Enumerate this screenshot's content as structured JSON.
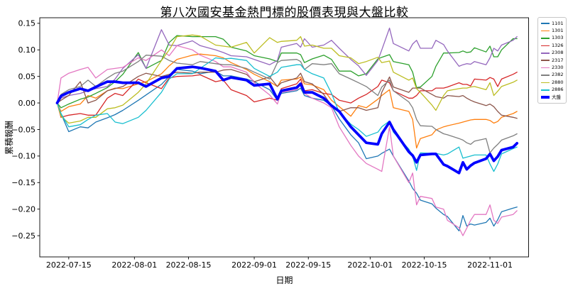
{
  "title": "第八次國安基金熱門標的股價表現與大盤比較",
  "chart_data": {
    "type": "line",
    "title": "第八次國安基金熱門標的股價表現與大盤比較",
    "xlabel": "日期",
    "ylabel": "累積報酬",
    "grid": false,
    "legend_position": "outside-right",
    "background": "#ffffff",
    "spine_color": "#000000",
    "ylim": [
      -0.29,
      0.1605
    ],
    "xlim_days": [
      -4.5,
      122
    ],
    "yticks": [
      {
        "v": 0.15,
        "label": "0.15"
      },
      {
        "v": 0.1,
        "label": "0.10"
      },
      {
        "v": 0.05,
        "label": "0.05"
      },
      {
        "v": 0.0,
        "label": "0.00"
      },
      {
        "v": -0.05,
        "label": "−0.05"
      },
      {
        "v": -0.1,
        "label": "−0.10"
      },
      {
        "v": -0.15,
        "label": "−0.15"
      },
      {
        "v": -0.2,
        "label": "−0.20"
      },
      {
        "v": -0.25,
        "label": "−0.25"
      }
    ],
    "xticks": [
      {
        "date": "2022-07-15",
        "label": "2022-07-15"
      },
      {
        "date": "2022-08-01",
        "label": "2022-08-01"
      },
      {
        "date": "2022-08-15",
        "label": "2022-08-15"
      },
      {
        "date": "2022-09-01",
        "label": "2022-09-01"
      },
      {
        "date": "2022-09-15",
        "label": "2022-09-15"
      },
      {
        "date": "2022-10-01",
        "label": "2022-10-01"
      },
      {
        "date": "2022-10-15",
        "label": "2022-10-15"
      },
      {
        "date": "2022-11-01",
        "label": "2022-11-01"
      }
    ],
    "x": [
      "2022-07-12",
      "2022-07-13",
      "2022-07-15",
      "2022-07-18",
      "2022-07-20",
      "2022-07-22",
      "2022-07-25",
      "2022-07-27",
      "2022-07-29",
      "2022-08-02",
      "2022-08-04",
      "2022-08-08",
      "2022-08-10",
      "2022-08-12",
      "2022-08-16",
      "2022-08-18",
      "2022-08-22",
      "2022-08-24",
      "2022-08-26",
      "2022-08-30",
      "2022-09-01",
      "2022-09-05",
      "2022-09-07",
      "2022-09-08",
      "2022-09-12",
      "2022-09-13",
      "2022-09-14",
      "2022-09-16",
      "2022-09-19",
      "2022-09-21",
      "2022-09-23",
      "2022-09-26",
      "2022-09-28",
      "2022-09-30",
      "2022-10-03",
      "2022-10-04",
      "2022-10-06",
      "2022-10-07",
      "2022-10-11",
      "2022-10-12",
      "2022-10-13",
      "2022-10-14",
      "2022-10-17",
      "2022-10-18",
      "2022-10-20",
      "2022-10-21",
      "2022-10-24",
      "2022-10-25",
      "2022-10-26",
      "2022-10-27",
      "2022-10-28",
      "2022-10-31",
      "2022-11-01",
      "2022-11-02",
      "2022-11-03",
      "2022-11-04",
      "2022-11-07",
      "2022-11-08"
    ],
    "series": [
      {
        "name": "1101",
        "color": "#1f77b4",
        "width": 1.3,
        "values": [
          0.0,
          -0.02,
          -0.054,
          -0.045,
          -0.047,
          -0.036,
          -0.028,
          -0.022,
          -0.014,
          0.005,
          0.015,
          0.035,
          0.05,
          0.063,
          0.06,
          0.055,
          0.06,
          0.051,
          0.051,
          0.045,
          0.04,
          0.025,
          0.005,
          0.018,
          0.023,
          0.028,
          0.014,
          0.009,
          0.005,
          -0.005,
          -0.03,
          -0.06,
          -0.075,
          -0.105,
          -0.1,
          -0.095,
          -0.087,
          -0.1,
          -0.147,
          -0.161,
          -0.17,
          -0.183,
          -0.19,
          -0.198,
          -0.21,
          -0.214,
          -0.241,
          -0.212,
          -0.232,
          -0.228,
          -0.23,
          -0.225,
          -0.217,
          -0.232,
          -0.22,
          -0.205,
          -0.198,
          -0.196
        ]
      },
      {
        "name": "1301",
        "color": "#ff7f0e",
        "width": 1.3,
        "values": [
          0.0,
          -0.016,
          -0.007,
          -0.002,
          0.014,
          0.009,
          0.023,
          0.028,
          0.027,
          0.036,
          0.04,
          0.055,
          0.07,
          0.082,
          0.09,
          0.092,
          0.089,
          0.085,
          0.076,
          0.063,
          0.054,
          0.04,
          0.031,
          0.043,
          0.045,
          0.049,
          0.036,
          0.034,
          0.025,
          0.005,
          -0.007,
          -0.025,
          -0.005,
          -0.009,
          0.007,
          0.014,
          0.025,
          -0.009,
          -0.016,
          -0.031,
          -0.085,
          -0.067,
          -0.06,
          -0.051,
          -0.045,
          -0.043,
          -0.038,
          -0.036,
          -0.034,
          -0.032,
          -0.031,
          -0.031,
          -0.033,
          -0.038,
          -0.035,
          -0.027,
          -0.02,
          -0.016
        ]
      },
      {
        "name": "1303",
        "color": "#2ca02c",
        "width": 1.3,
        "values": [
          0.0,
          -0.009,
          -0.002,
          0.007,
          0.011,
          0.018,
          0.029,
          0.04,
          0.054,
          0.095,
          0.065,
          0.08,
          0.114,
          0.127,
          0.125,
          0.125,
          0.125,
          0.12,
          0.105,
          0.098,
          0.089,
          0.083,
          0.078,
          0.094,
          0.094,
          0.091,
          0.076,
          0.083,
          0.09,
          0.082,
          0.06,
          0.06,
          0.051,
          0.055,
          0.083,
          0.086,
          0.091,
          0.078,
          0.072,
          0.058,
          0.029,
          0.03,
          0.05,
          0.069,
          0.094,
          0.094,
          0.095,
          0.098,
          0.095,
          0.096,
          0.104,
          0.096,
          0.107,
          0.087,
          0.087,
          0.1,
          0.121,
          0.121
        ]
      },
      {
        "name": "1326",
        "color": "#d62728",
        "width": 1.3,
        "values": [
          0.0,
          -0.027,
          -0.023,
          -0.02,
          -0.023,
          -0.023,
          0.009,
          0.018,
          0.014,
          0.045,
          0.038,
          0.027,
          0.047,
          0.05,
          0.051,
          0.053,
          0.04,
          0.043,
          0.025,
          0.014,
          0.002,
          0.009,
          0.005,
          0.027,
          0.036,
          0.045,
          0.023,
          0.025,
          0.018,
          0.016,
          0.005,
          0.0,
          0.009,
          0.016,
          0.031,
          0.043,
          0.038,
          0.023,
          0.009,
          0.009,
          0.014,
          0.023,
          0.023,
          0.028,
          0.028,
          0.03,
          0.038,
          0.035,
          0.035,
          0.032,
          0.045,
          0.043,
          0.048,
          0.045,
          0.031,
          0.045,
          0.054,
          0.058
        ]
      },
      {
        "name": "2308",
        "color": "#9467bd",
        "width": 1.3,
        "values": [
          0.0,
          0.009,
          0.014,
          0.018,
          0.023,
          0.027,
          0.031,
          0.045,
          0.065,
          0.091,
          0.065,
          0.138,
          0.109,
          0.108,
          0.117,
          0.108,
          0.1,
          0.095,
          0.089,
          0.087,
          0.082,
          0.072,
          0.08,
          0.105,
          0.112,
          0.105,
          0.121,
          0.105,
          0.109,
          0.118,
          0.103,
          0.082,
          0.07,
          0.052,
          0.08,
          0.1,
          0.141,
          0.112,
          0.098,
          0.111,
          0.118,
          0.103,
          0.103,
          0.118,
          0.11,
          0.098,
          0.069,
          0.072,
          0.074,
          0.073,
          0.078,
          0.072,
          0.085,
          0.103,
          0.098,
          0.109,
          0.118,
          0.125
        ]
      },
      {
        "name": "2317",
        "color": "#8c564b",
        "width": 1.3,
        "values": [
          0.0,
          0.005,
          0.014,
          0.04,
          0.0,
          0.005,
          0.023,
          0.027,
          0.031,
          0.05,
          0.056,
          0.05,
          0.054,
          0.058,
          0.056,
          0.058,
          0.058,
          0.062,
          0.063,
          0.054,
          0.04,
          0.049,
          0.031,
          0.038,
          0.047,
          0.056,
          0.04,
          0.036,
          0.016,
          -0.005,
          -0.016,
          -0.009,
          -0.009,
          -0.014,
          -0.009,
          0.02,
          0.049,
          0.03,
          0.02,
          0.028,
          0.028,
          0.028,
          0.016,
          0.012,
          0.009,
          0.014,
          0.012,
          0.014,
          0.009,
          0.005,
          0.002,
          -0.005,
          -0.002,
          -0.007,
          -0.016,
          -0.023,
          -0.027,
          -0.029
        ]
      },
      {
        "name": "2330",
        "color": "#e377c2",
        "width": 1.3,
        "values": [
          0.0,
          0.047,
          0.056,
          0.063,
          0.067,
          0.047,
          0.063,
          0.065,
          0.067,
          0.085,
          0.08,
          0.1,
          0.089,
          0.108,
          0.1,
          0.09,
          0.078,
          0.068,
          0.068,
          0.058,
          0.038,
          0.015,
          -0.002,
          0.02,
          0.025,
          0.034,
          0.018,
          0.009,
          0.0,
          -0.009,
          -0.045,
          -0.08,
          -0.1,
          -0.114,
          -0.125,
          -0.129,
          -0.045,
          -0.1,
          -0.15,
          -0.132,
          -0.192,
          -0.176,
          -0.18,
          -0.196,
          -0.2,
          -0.221,
          -0.235,
          -0.25,
          -0.236,
          -0.221,
          -0.21,
          -0.21,
          -0.192,
          -0.221,
          -0.227,
          -0.215,
          -0.21,
          -0.203
        ]
      },
      {
        "name": "2382",
        "color": "#7f7f7f",
        "width": 1.3,
        "values": [
          0.0,
          0.016,
          0.025,
          0.031,
          0.043,
          0.031,
          0.047,
          0.056,
          0.06,
          0.078,
          0.09,
          0.088,
          0.08,
          0.075,
          0.072,
          0.078,
          0.074,
          0.072,
          0.072,
          0.065,
          0.058,
          0.045,
          0.076,
          0.08,
          0.082,
          0.078,
          0.063,
          0.074,
          0.072,
          0.074,
          0.055,
          0.045,
          0.038,
          0.031,
          0.014,
          0.03,
          0.043,
          0.023,
          0.002,
          -0.009,
          -0.031,
          -0.043,
          -0.044,
          -0.05,
          -0.058,
          -0.06,
          -0.067,
          -0.07,
          -0.075,
          -0.078,
          -0.072,
          -0.067,
          -0.094,
          -0.085,
          -0.078,
          -0.07,
          -0.062,
          -0.058
        ]
      },
      {
        "name": "2880",
        "color": "#bcbd22",
        "width": 1.3,
        "values": [
          0.0,
          -0.025,
          -0.038,
          -0.034,
          -0.027,
          -0.027,
          -0.011,
          -0.009,
          -0.004,
          0.02,
          0.036,
          0.08,
          0.1,
          0.125,
          0.128,
          0.126,
          0.109,
          0.107,
          0.105,
          0.114,
          0.094,
          0.123,
          0.114,
          0.116,
          0.118,
          0.125,
          0.107,
          0.109,
          0.103,
          0.103,
          0.089,
          0.085,
          0.074,
          0.078,
          0.086,
          0.076,
          0.079,
          0.058,
          0.043,
          0.047,
          0.027,
          0.02,
          -0.004,
          -0.014,
          0.014,
          0.023,
          0.027,
          0.028,
          0.028,
          0.03,
          0.031,
          0.025,
          0.038,
          0.014,
          0.022,
          0.031,
          0.039,
          0.043
        ]
      },
      {
        "name": "2886",
        "color": "#17becf",
        "width": 1.3,
        "values": [
          0.0,
          -0.02,
          -0.045,
          -0.041,
          -0.031,
          -0.023,
          -0.02,
          -0.036,
          -0.039,
          -0.027,
          -0.014,
          0.02,
          0.045,
          0.055,
          0.055,
          0.065,
          0.085,
          0.083,
          0.084,
          0.08,
          0.065,
          0.05,
          0.058,
          0.067,
          0.072,
          0.072,
          0.063,
          0.055,
          0.047,
          0.018,
          -0.018,
          -0.04,
          -0.05,
          -0.063,
          -0.055,
          -0.045,
          -0.034,
          -0.055,
          -0.087,
          -0.1,
          -0.127,
          -0.094,
          -0.095,
          -0.095,
          -0.098,
          -0.096,
          -0.083,
          -0.104,
          -0.102,
          -0.1,
          -0.098,
          -0.098,
          -0.115,
          -0.129,
          -0.115,
          -0.096,
          -0.086,
          -0.083
        ]
      },
      {
        "name": "大盤",
        "color": "#0000ff",
        "width": 3.75,
        "values": [
          0.0,
          0.013,
          0.02,
          0.027,
          0.023,
          0.03,
          0.04,
          0.04,
          0.038,
          0.038,
          0.031,
          0.047,
          0.05,
          0.065,
          0.068,
          0.066,
          0.06,
          0.043,
          0.048,
          0.043,
          0.033,
          0.036,
          0.007,
          0.023,
          0.029,
          0.036,
          0.02,
          0.02,
          0.009,
          -0.005,
          -0.016,
          -0.045,
          -0.06,
          -0.075,
          -0.078,
          -0.058,
          -0.036,
          -0.05,
          -0.092,
          -0.099,
          -0.112,
          -0.098,
          -0.096,
          -0.096,
          -0.116,
          -0.119,
          -0.132,
          -0.112,
          -0.125,
          -0.118,
          -0.113,
          -0.105,
          -0.096,
          -0.109,
          -0.101,
          -0.089,
          -0.083,
          -0.076
        ]
      }
    ]
  }
}
